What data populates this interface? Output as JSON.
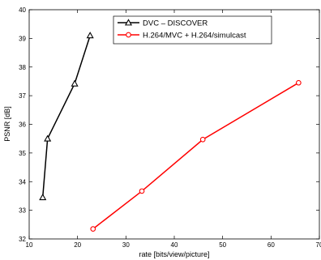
{
  "chart_data": {
    "type": "line",
    "xlabel": "rate [bits/view/picture]",
    "ylabel": "PSNR [dB]",
    "xlim": [
      10,
      70
    ],
    "ylim": [
      32,
      40
    ],
    "xticks": [
      "10",
      "20",
      "30",
      "40",
      "50",
      "60",
      "70"
    ],
    "yticks": [
      "32",
      "33",
      "34",
      "35",
      "36",
      "37",
      "38",
      "39",
      "40"
    ],
    "grid": false,
    "legend_position": "top-center",
    "series": [
      {
        "name": "DVC – DISCOVER",
        "color": "#000000",
        "marker": "triangle",
        "x": [
          12.8,
          13.8,
          19.4,
          22.6
        ],
        "y": [
          33.45,
          35.5,
          37.42,
          39.1
        ]
      },
      {
        "name": "H.264/MVC + H.264/simulcast",
        "color": "#ff0000",
        "marker": "circle",
        "x": [
          23.2,
          33.3,
          45.9,
          65.7
        ],
        "y": [
          32.35,
          33.67,
          35.47,
          37.45
        ]
      }
    ]
  }
}
